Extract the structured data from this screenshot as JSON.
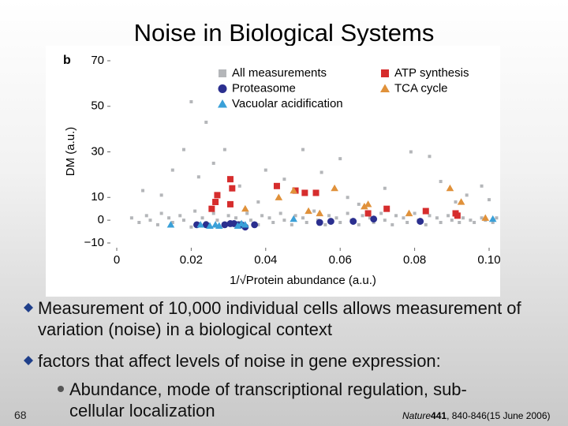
{
  "slide": {
    "title": "Noise in Biological Systems",
    "page_number": "68",
    "bullets": [
      "Measurement of 10,000 individual cells allows measurement of variation (noise) in a biological context",
      "factors that affect levels of noise in gene expression:"
    ],
    "sub_bullets": [
      "Abundance, mode of transcriptional regulation, sub-cellular localization"
    ],
    "citation": {
      "journal": "Nature",
      "volume": "441",
      "pages": ", 840-846(15 June 2006)"
    }
  },
  "chart_data": {
    "type": "scatter",
    "panel_label": "b",
    "x_label": "1/√Protein abundance (a.u.)",
    "y_label": "DM (a.u.)",
    "xlim": [
      0,
      0.1
    ],
    "ylim": [
      -10,
      70
    ],
    "xticks": [
      0,
      0.02,
      0.04,
      0.06,
      0.08,
      {
        "value": 0.1,
        "label": "0.10"
      }
    ],
    "yticks": [
      {
        "value": -10,
        "label": "−10"
      },
      0,
      10,
      30,
      50,
      70
    ],
    "series": [
      {
        "name": "All measurements",
        "color": "#b4b6b9",
        "marker": "square",
        "x": [
          0.004,
          0.006,
          0.008,
          0.009,
          0.011,
          0.012,
          0.014,
          0.015,
          0.017,
          0.018,
          0.02,
          0.021,
          0.023,
          0.024,
          0.026,
          0.027,
          0.029,
          0.03,
          0.032,
          0.033,
          0.035,
          0.036,
          0.038,
          0.039,
          0.041,
          0.042,
          0.044,
          0.045,
          0.047,
          0.048,
          0.05,
          0.051,
          0.053,
          0.054,
          0.056,
          0.057,
          0.059,
          0.06,
          0.062,
          0.063,
          0.065,
          0.066,
          0.068,
          0.069,
          0.071,
          0.072,
          0.074,
          0.075,
          0.077,
          0.078,
          0.08,
          0.081,
          0.083,
          0.084,
          0.086,
          0.087,
          0.089,
          0.09,
          0.092,
          0.093,
          0.095,
          0.096,
          0.098,
          0.099,
          0.101,
          0.102,
          0.02,
          0.024,
          0.018,
          0.029,
          0.007,
          0.012,
          0.015,
          0.022,
          0.026,
          0.033,
          0.04,
          0.045,
          0.05,
          0.055,
          0.06,
          0.062,
          0.072,
          0.079,
          0.084,
          0.087,
          0.094,
          0.098,
          0.1,
          0.038,
          0.065,
          0.091
        ],
        "values": [
          1,
          -1,
          2,
          0,
          -2,
          3,
          1,
          -1,
          2,
          0,
          -3,
          4,
          1,
          -1,
          3,
          0,
          -2,
          2,
          1,
          -1,
          3,
          0,
          -2,
          2,
          1,
          -1,
          3,
          0,
          -2,
          2,
          1,
          -1,
          4,
          0,
          -2,
          2,
          1,
          -1,
          3,
          0,
          -2,
          2,
          1,
          -1,
          3,
          0,
          -2,
          2,
          1,
          -1,
          3,
          0,
          -2,
          2,
          1,
          -1,
          2,
          0,
          -1,
          1,
          0,
          -1,
          1,
          0,
          -1,
          1,
          52,
          43,
          31,
          31,
          13,
          11,
          22,
          19,
          25,
          15,
          22,
          18,
          31,
          21,
          27,
          10,
          14,
          30,
          28,
          17,
          11,
          15,
          9,
          8,
          7,
          8
        ]
      },
      {
        "name": "Proteasome",
        "color": "#2b2f8f",
        "marker": "circle",
        "x": [
          0.0215,
          0.024,
          0.029,
          0.0305,
          0.0315,
          0.0325,
          0.0335,
          0.0345,
          0.037,
          0.0545,
          0.0575,
          0.0635,
          0.069,
          0.0815
        ],
        "values": [
          -2,
          -2,
          -2,
          -1.5,
          -1.5,
          -2,
          -2,
          -3,
          -2,
          -1,
          -0.5,
          -0.5,
          0.5,
          -0.5
        ]
      },
      {
        "name": "Vacuolar acidification",
        "color": "#3aa0d8",
        "marker": "triangle",
        "x": [
          0.0145,
          0.0225,
          0.025,
          0.0265,
          0.0275,
          0.0325,
          0.0345,
          0.0335,
          0.0475,
          0.101
        ],
        "values": [
          -2,
          -2,
          -2.5,
          -2,
          -2.5,
          -2.5,
          -2,
          -1.5,
          0.5,
          0.5
        ]
      },
      {
        "name": "ATP synthesis",
        "color": "#d62d2d",
        "marker": "square",
        "x": [
          0.0265,
          0.027,
          0.0305,
          0.031,
          0.0305,
          0.0255,
          0.043,
          0.048,
          0.0505,
          0.0535,
          0.0675,
          0.0725,
          0.083,
          0.091,
          0.0915
        ],
        "values": [
          8,
          11,
          18,
          14,
          7,
          5,
          15,
          13,
          12,
          12,
          3,
          5,
          4,
          3,
          2
        ]
      },
      {
        "name": "TCA cycle",
        "color": "#e0913a",
        "marker": "triangle",
        "x": [
          0.0345,
          0.0435,
          0.0475,
          0.0515,
          0.0545,
          0.0585,
          0.0665,
          0.0675,
          0.0785,
          0.0895,
          0.0925,
          0.099
        ],
        "values": [
          5,
          10,
          13,
          4,
          3,
          14,
          6,
          7,
          3,
          14,
          8,
          1
        ]
      }
    ]
  }
}
